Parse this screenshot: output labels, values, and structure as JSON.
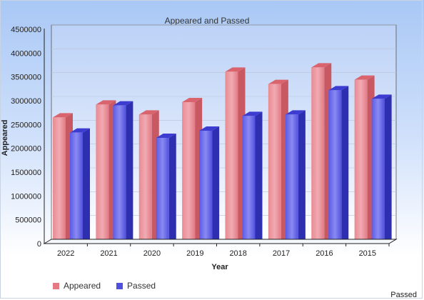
{
  "chart_data": {
    "type": "bar",
    "title": "Appeared and Passed",
    "xlabel": "Year",
    "ylabel": "Appeared",
    "categories": [
      "2022",
      "2021",
      "2020",
      "2019",
      "2018",
      "2017",
      "2016",
      "2015"
    ],
    "series": [
      {
        "name": "Appeared",
        "color": "#e57a84",
        "values": [
          2650000,
          2920000,
          2710000,
          2970000,
          3610000,
          3350000,
          3700000,
          3440000
        ]
      },
      {
        "name": "Passed",
        "color": "#5050e0",
        "values": [
          2330000,
          2900000,
          2220000,
          2370000,
          2680000,
          2710000,
          3220000,
          3040000
        ]
      }
    ],
    "ylim": [
      0,
      4500000
    ],
    "yticks": [
      "4500000",
      "4000000",
      "3500000",
      "3000000",
      "2500000",
      "2000000",
      "1500000",
      "1000000",
      "500000",
      "0"
    ],
    "grid": true,
    "legend_position": "bottom-left"
  },
  "footer": {
    "right_label": "Passed"
  }
}
